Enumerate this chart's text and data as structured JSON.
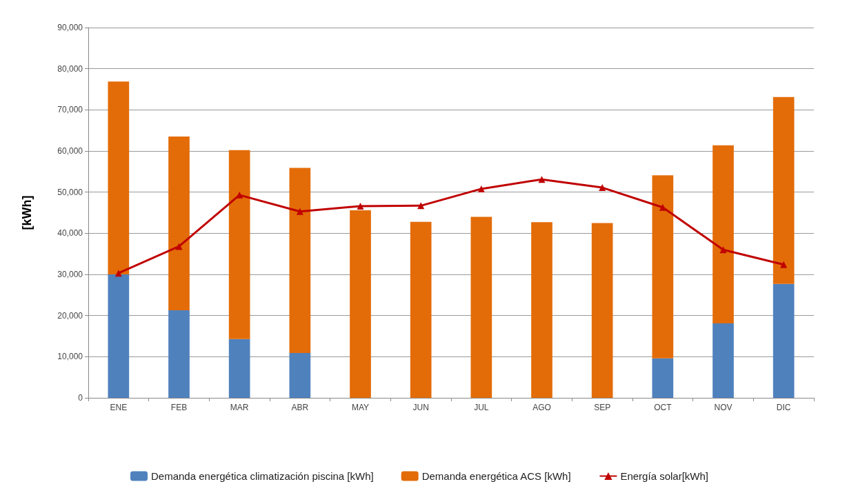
{
  "chart_data": {
    "type": "bar",
    "stacked": true,
    "ylabel": "[kWh]",
    "categories": [
      "ENE",
      "FEB",
      "MAR",
      "ABR",
      "MAY",
      "JUN",
      "JUL",
      "AGO",
      "SEP",
      "OCT",
      "NOV",
      "DIC"
    ],
    "series": [
      {
        "name": "Demanda energética climatización piscina [kWh]",
        "color": "#4f81bd",
        "values": [
          30000,
          21300,
          14300,
          10900,
          0,
          0,
          0,
          0,
          0,
          9600,
          18100,
          27700
        ]
      },
      {
        "name": "Demanda energética ACS [kWh]",
        "color": "#e36c09",
        "values": [
          46900,
          42200,
          45900,
          45000,
          45600,
          42800,
          44000,
          42700,
          42500,
          44500,
          43300,
          45400
        ]
      },
      {
        "name": "Energía solar[kWh]",
        "type": "line",
        "color": "#c00000",
        "marker": "triangle",
        "line_style": "solid",
        "values": [
          30300,
          36800,
          49300,
          45300,
          46600,
          46700,
          50800,
          53100,
          51100,
          46300,
          36000,
          32400
        ]
      }
    ],
    "ylim": [
      0,
      90000
    ],
    "yticks": [
      {
        "value": 0,
        "label": "0"
      },
      {
        "value": 10000,
        "label": "10,000"
      },
      {
        "value": 20000,
        "label": "20,000"
      },
      {
        "value": 30000,
        "label": "30,000"
      },
      {
        "value": 40000,
        "label": "40,000"
      },
      {
        "value": 50000,
        "label": "50,000"
      },
      {
        "value": 60000,
        "label": "60,000"
      },
      {
        "value": 70000,
        "label": "70,000"
      },
      {
        "value": 80000,
        "label": "80,000"
      },
      {
        "value": 90000,
        "label": "90,000"
      }
    ],
    "grid": "y",
    "legend": "bottom"
  }
}
